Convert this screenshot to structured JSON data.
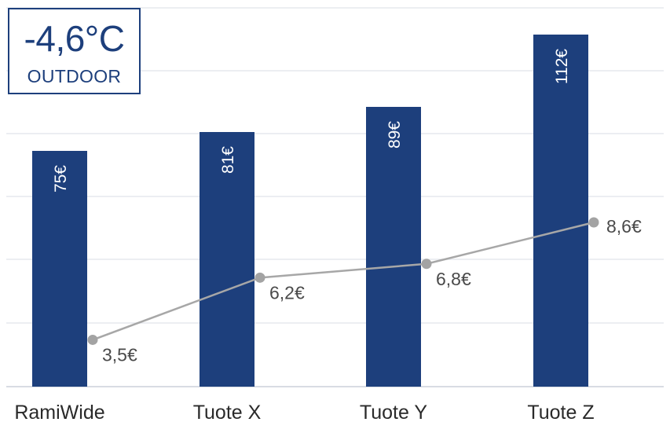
{
  "badge": {
    "temperature": "-4,6°C",
    "label": "OUTDOOR"
  },
  "colors": {
    "bar": "#1d3f7c",
    "line": "#a7a7a7",
    "grid": "#e6e9ee"
  },
  "chart_data": {
    "type": "bar",
    "categories": [
      "RamiWide",
      "Tuote X",
      "Tuote Y",
      "Tuote Z"
    ],
    "series": [
      {
        "type": "bar",
        "values": [
          75,
          81,
          89,
          112
        ],
        "labels": [
          "75€",
          "81€",
          "89€",
          "112€"
        ]
      },
      {
        "type": "line",
        "values": [
          3.5,
          6.2,
          6.8,
          8.6
        ],
        "labels": [
          "3,5€",
          "6,2€",
          "6,8€",
          "8,6€"
        ]
      }
    ],
    "grid": true,
    "legend": "none"
  }
}
